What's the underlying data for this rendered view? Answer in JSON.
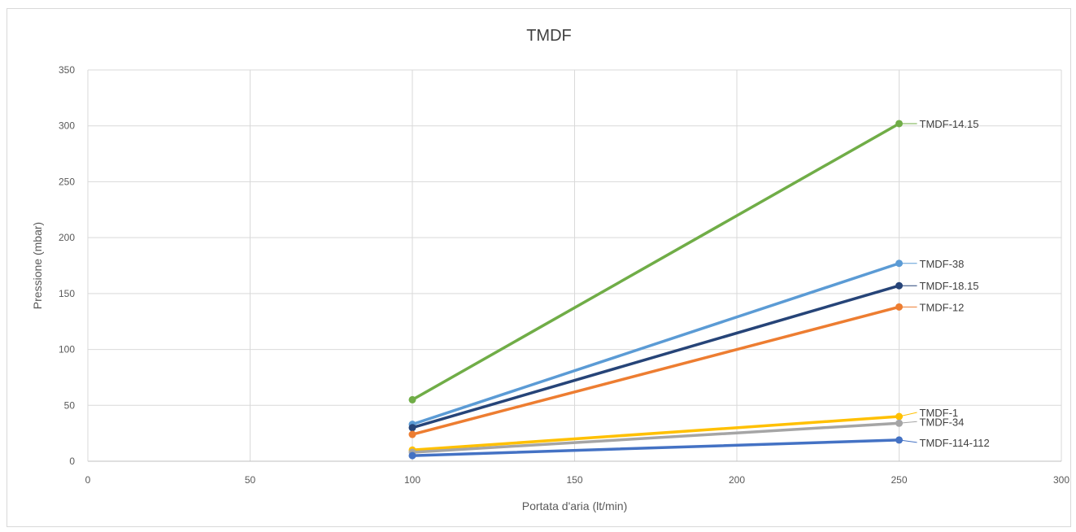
{
  "chart_data": {
    "type": "line",
    "title": "TMDF",
    "xlabel": "Portata d'aria (lt/min)",
    "ylabel": "Pressione (mbar)",
    "xlim": [
      0,
      300
    ],
    "ylim": [
      0,
      350
    ],
    "xticks": [
      0,
      50,
      100,
      150,
      200,
      250,
      300
    ],
    "yticks": [
      0,
      50,
      100,
      150,
      200,
      250,
      300,
      350
    ],
    "grid": true,
    "legend": "data labels at line ends",
    "series": [
      {
        "name": "TMDF-14.15",
        "color": "#70ad47",
        "x": [
          100,
          250
        ],
        "y": [
          55,
          302
        ]
      },
      {
        "name": "TMDF-38",
        "color": "#5b9bd5",
        "x": [
          100,
          250
        ],
        "y": [
          33,
          177
        ]
      },
      {
        "name": "TMDF-18.15",
        "color": "#264478",
        "x": [
          100,
          250
        ],
        "y": [
          30,
          157
        ]
      },
      {
        "name": "TMDF-12",
        "color": "#ed7d31",
        "x": [
          100,
          250
        ],
        "y": [
          24,
          138
        ]
      },
      {
        "name": "TMDF-1",
        "color": "#ffc000",
        "x": [
          100,
          250
        ],
        "y": [
          10,
          40
        ]
      },
      {
        "name": "TMDF-34",
        "color": "#a5a5a5",
        "x": [
          100,
          250
        ],
        "y": [
          8,
          34
        ]
      },
      {
        "name": "TMDF-114-112",
        "color": "#4472c4",
        "x": [
          100,
          250
        ],
        "y": [
          5,
          19
        ]
      }
    ]
  }
}
